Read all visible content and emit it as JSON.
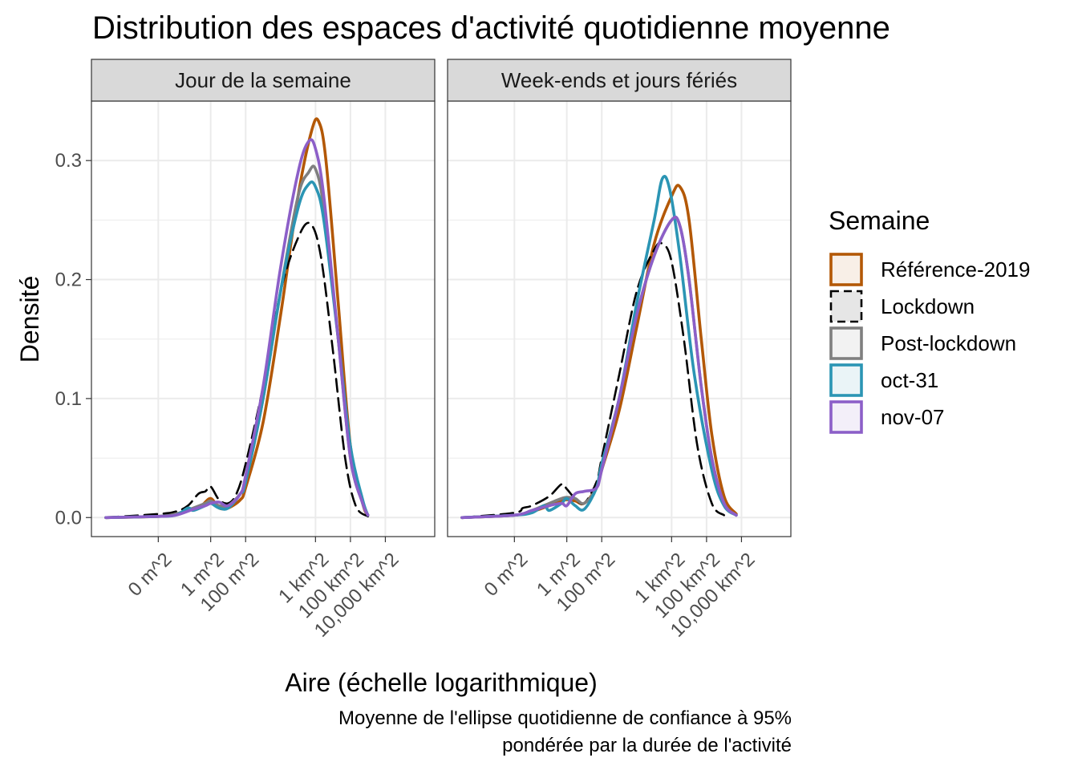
{
  "chart_data": {
    "type": "line",
    "title": "Distribution des espaces d'activité quotidienne moyenne",
    "xlabel": "Aire (échelle logarithmique)",
    "ylabel": "Densité",
    "caption_lines": [
      "Moyenne de l'ellipse quotidienne de confiance à 95%",
      "pondérée par la durée de l'activité"
    ],
    "x_scale": "log10",
    "x_unit": "m^2",
    "xlim": [
      1e-06,
      1000000000000
    ],
    "ylim": [
      -0.016,
      0.35
    ],
    "x_ticks": [
      {
        "value": 0.001,
        "label": "0 m^2"
      },
      {
        "value": 1,
        "label": "1 m^2"
      },
      {
        "value": 100,
        "label": "100 m^2"
      },
      {
        "value": 1000000,
        "label": "1 km^2"
      },
      {
        "value": 100000000,
        "label": "100 km^2"
      },
      {
        "value": 10000000000,
        "label": "10,000 km^2"
      }
    ],
    "y_ticks": [
      {
        "value": 0.0,
        "label": "0.0"
      },
      {
        "value": 0.1,
        "label": "0.1"
      },
      {
        "value": 0.2,
        "label": "0.2"
      },
      {
        "value": 0.3,
        "label": "0.3"
      }
    ],
    "grid": true,
    "legend": {
      "title": "Semaine",
      "position": "right",
      "entries": [
        {
          "label": "Référence-2019",
          "color": "#b35806",
          "fill": "#f8efe7",
          "dash": "solid"
        },
        {
          "label": "Lockdown",
          "color": "#000000",
          "fill": "#e6e6e6",
          "dash": "dashed"
        },
        {
          "label": "Post-lockdown",
          "color": "#7f7f7f",
          "fill": "#f2f2f2",
          "dash": "solid"
        },
        {
          "label": "oct-31",
          "color": "#2b95b4",
          "fill": "#eaf4f7",
          "dash": "solid"
        },
        {
          "label": "nov-07",
          "color": "#8c5fc8",
          "fill": "#f3eff9",
          "dash": "solid"
        }
      ]
    },
    "facets": [
      {
        "label": "Jour de la semaine",
        "series": [
          {
            "name": "Référence-2019",
            "points": [
              [
                1e-06,
                0.0
              ],
              [
                0.001,
                0.001
              ],
              [
                0.01,
                0.003
              ],
              [
                0.1,
                0.007
              ],
              [
                0.3,
                0.01
              ],
              [
                1,
                0.016
              ],
              [
                3,
                0.008
              ],
              [
                10,
                0.008
              ],
              [
                50,
                0.015
              ],
              [
                100,
                0.025
              ],
              [
                1000,
                0.08
              ],
              [
                10000,
                0.17
              ],
              [
                100000,
                0.27
              ],
              [
                600000,
                0.325
              ],
              [
                1500000,
                0.333
              ],
              [
                4000000,
                0.3
              ],
              [
                20000000,
                0.18
              ],
              [
                100000000,
                0.06
              ],
              [
                500000000,
                0.012
              ],
              [
                1000000000,
                0.002
              ]
            ]
          },
          {
            "name": "Lockdown",
            "points": [
              [
                1e-06,
                0.0
              ],
              [
                0.001,
                0.003
              ],
              [
                0.01,
                0.005
              ],
              [
                0.05,
                0.01
              ],
              [
                0.2,
                0.02
              ],
              [
                0.5,
                0.022
              ],
              [
                1,
                0.026
              ],
              [
                3,
                0.015
              ],
              [
                10,
                0.012
              ],
              [
                30,
                0.02
              ],
              [
                100,
                0.045
              ],
              [
                1000,
                0.11
              ],
              [
                10000,
                0.19
              ],
              [
                100000,
                0.235
              ],
              [
                500000,
                0.247
              ],
              [
                2000000,
                0.22
              ],
              [
                10000000,
                0.14
              ],
              [
                50000000,
                0.05
              ],
              [
                200000000,
                0.01
              ],
              [
                1000000000,
                0.001
              ]
            ]
          },
          {
            "name": "Post-lockdown",
            "points": [
              [
                1e-06,
                0.0
              ],
              [
                0.001,
                0.001
              ],
              [
                0.01,
                0.003
              ],
              [
                0.1,
                0.008
              ],
              [
                0.5,
                0.012
              ],
              [
                1,
                0.014
              ],
              [
                3,
                0.01
              ],
              [
                10,
                0.01
              ],
              [
                50,
                0.02
              ],
              [
                100,
                0.03
              ],
              [
                1000,
                0.1
              ],
              [
                10000,
                0.19
              ],
              [
                100000,
                0.27
              ],
              [
                400000,
                0.29
              ],
              [
                1000000,
                0.293
              ],
              [
                3000000,
                0.26
              ],
              [
                20000000,
                0.15
              ],
              [
                100000000,
                0.05
              ],
              [
                500000000,
                0.012
              ],
              [
                1000000000,
                0.002
              ]
            ]
          },
          {
            "name": "oct-31",
            "points": [
              [
                1e-06,
                0.0
              ],
              [
                0.001,
                0.001
              ],
              [
                0.01,
                0.002
              ],
              [
                0.05,
                0.008
              ],
              [
                0.1,
                0.006
              ],
              [
                0.5,
                0.01
              ],
              [
                1,
                0.012
              ],
              [
                3,
                0.008
              ],
              [
                10,
                0.008
              ],
              [
                50,
                0.02
              ],
              [
                100,
                0.03
              ],
              [
                1000,
                0.1
              ],
              [
                10000,
                0.19
              ],
              [
                100000,
                0.26
              ],
              [
                400000,
                0.28
              ],
              [
                1000000,
                0.278
              ],
              [
                3000000,
                0.25
              ],
              [
                20000000,
                0.15
              ],
              [
                100000000,
                0.06
              ],
              [
                500000000,
                0.015
              ],
              [
                1000000000,
                0.002
              ]
            ]
          },
          {
            "name": "nov-07",
            "points": [
              [
                1e-06,
                0.0
              ],
              [
                0.001,
                0.001
              ],
              [
                0.01,
                0.002
              ],
              [
                0.1,
                0.007
              ],
              [
                0.5,
                0.01
              ],
              [
                1,
                0.012
              ],
              [
                3,
                0.013
              ],
              [
                10,
                0.01
              ],
              [
                50,
                0.02
              ],
              [
                100,
                0.035
              ],
              [
                1000,
                0.11
              ],
              [
                10000,
                0.21
              ],
              [
                100000,
                0.29
              ],
              [
                400000,
                0.316
              ],
              [
                1000000,
                0.31
              ],
              [
                3000000,
                0.27
              ],
              [
                20000000,
                0.15
              ],
              [
                100000000,
                0.05
              ],
              [
                500000000,
                0.012
              ],
              [
                1000000000,
                0.002
              ]
            ]
          }
        ]
      },
      {
        "label": "Week-ends et jours fériés",
        "series": [
          {
            "name": "Référence-2019",
            "points": [
              [
                1e-06,
                0.0
              ],
              [
                0.001,
                0.002
              ],
              [
                0.01,
                0.005
              ],
              [
                0.1,
                0.01
              ],
              [
                0.5,
                0.014
              ],
              [
                1,
                0.015
              ],
              [
                3,
                0.014
              ],
              [
                10,
                0.012
              ],
              [
                50,
                0.025
              ],
              [
                100,
                0.04
              ],
              [
                1000,
                0.09
              ],
              [
                10000,
                0.16
              ],
              [
                100000,
                0.23
              ],
              [
                1000000,
                0.27
              ],
              [
                3000000,
                0.278
              ],
              [
                10000000,
                0.25
              ],
              [
                50000000,
                0.15
              ],
              [
                200000000,
                0.07
              ],
              [
                1000000000,
                0.018
              ],
              [
                5000000000,
                0.003
              ]
            ]
          },
          {
            "name": "Lockdown",
            "points": [
              [
                1e-06,
                0.0
              ],
              [
                0.001,
                0.004
              ],
              [
                0.003,
                0.008
              ],
              [
                0.01,
                0.01
              ],
              [
                0.1,
                0.018
              ],
              [
                0.5,
                0.028
              ],
              [
                1,
                0.024
              ],
              [
                3,
                0.016
              ],
              [
                10,
                0.012
              ],
              [
                50,
                0.03
              ],
              [
                100,
                0.05
              ],
              [
                1000,
                0.12
              ],
              [
                10000,
                0.19
              ],
              [
                100000,
                0.225
              ],
              [
                300000,
                0.23
              ],
              [
                1000000,
                0.215
              ],
              [
                5000000,
                0.15
              ],
              [
                30000000,
                0.06
              ],
              [
                200000000,
                0.012
              ],
              [
                1000000000,
                0.002
              ]
            ]
          },
          {
            "name": "Post-lockdown",
            "points": [
              [
                1e-06,
                0.0
              ],
              [
                0.001,
                0.002
              ],
              [
                0.01,
                0.006
              ],
              [
                0.1,
                0.012
              ],
              [
                0.5,
                0.016
              ],
              [
                1,
                0.017
              ],
              [
                3,
                0.016
              ],
              [
                10,
                0.012
              ],
              [
                50,
                0.025
              ],
              [
                100,
                0.045
              ],
              [
                1000,
                0.1
              ],
              [
                10000,
                0.17
              ],
              [
                100000,
                0.22
              ],
              [
                1000000,
                0.25
              ],
              [
                3000000,
                0.245
              ],
              [
                10000000,
                0.2
              ],
              [
                50000000,
                0.11
              ],
              [
                200000000,
                0.05
              ],
              [
                1000000000,
                0.012
              ],
              [
                5000000000,
                0.002
              ]
            ]
          },
          {
            "name": "oct-31",
            "points": [
              [
                1e-06,
                0.0
              ],
              [
                0.001,
                0.002
              ],
              [
                0.01,
                0.004
              ],
              [
                0.05,
                0.01
              ],
              [
                0.1,
                0.006
              ],
              [
                0.5,
                0.012
              ],
              [
                1,
                0.016
              ],
              [
                3,
                0.01
              ],
              [
                10,
                0.007
              ],
              [
                50,
                0.025
              ],
              [
                100,
                0.045
              ],
              [
                1000,
                0.1
              ],
              [
                10000,
                0.18
              ],
              [
                100000,
                0.25
              ],
              [
                300000,
                0.285
              ],
              [
                800000,
                0.275
              ],
              [
                3000000,
                0.22
              ],
              [
                20000000,
                0.12
              ],
              [
                200000000,
                0.04
              ],
              [
                1000000000,
                0.01
              ],
              [
                5000000000,
                0.002
              ]
            ]
          },
          {
            "name": "nov-07",
            "points": [
              [
                1e-06,
                0.0
              ],
              [
                0.001,
                0.002
              ],
              [
                0.01,
                0.006
              ],
              [
                0.1,
                0.01
              ],
              [
                0.5,
                0.012
              ],
              [
                1,
                0.01
              ],
              [
                3,
                0.02
              ],
              [
                10,
                0.022
              ],
              [
                50,
                0.025
              ],
              [
                100,
                0.04
              ],
              [
                1000,
                0.1
              ],
              [
                10000,
                0.17
              ],
              [
                100000,
                0.22
              ],
              [
                1000000,
                0.25
              ],
              [
                3000000,
                0.245
              ],
              [
                10000000,
                0.2
              ],
              [
                50000000,
                0.11
              ],
              [
                200000000,
                0.05
              ],
              [
                1000000000,
                0.012
              ],
              [
                5000000000,
                0.002
              ]
            ]
          }
        ]
      }
    ]
  }
}
